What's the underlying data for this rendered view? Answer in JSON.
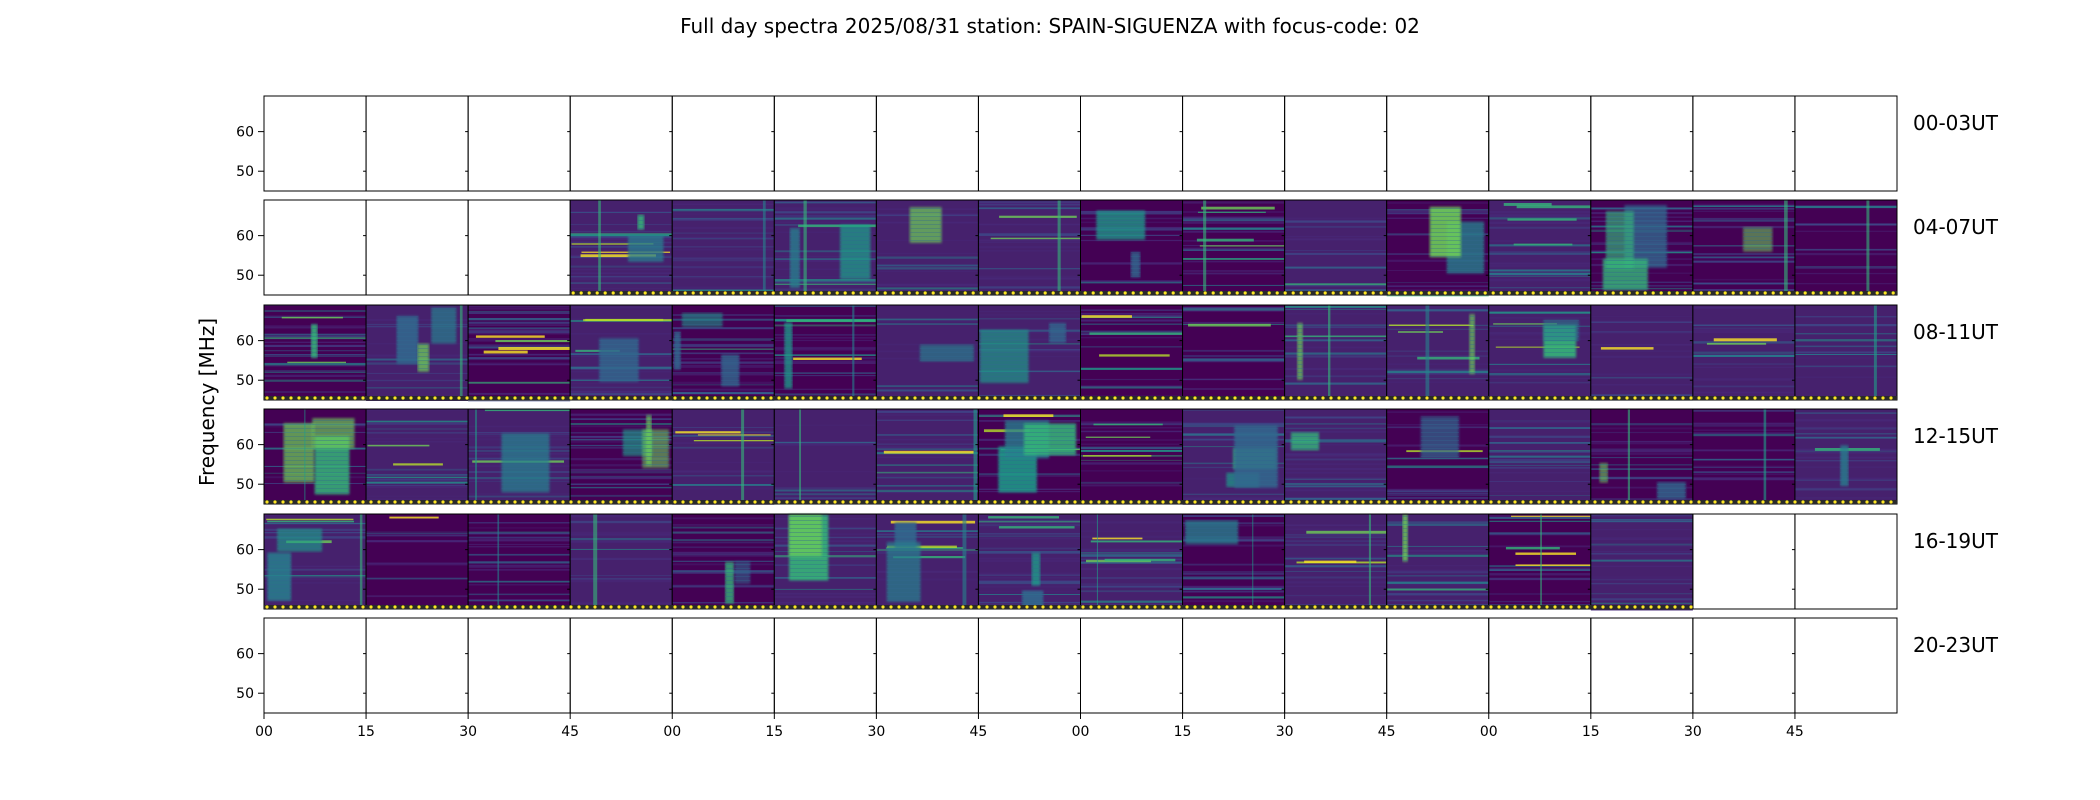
{
  "chart_data": {
    "type": "heatmap",
    "title": "Full day spectra 2025/08/31 station: SPAIN-SIGUENZA with focus-code: 02",
    "ylabel": "Frequency [MHz]",
    "xlabel": "",
    "y_ticks": [
      50,
      60
    ],
    "y_range": [
      45,
      69
    ],
    "x_ticks": [
      "00",
      "15",
      "30",
      "45",
      "00",
      "15",
      "30",
      "45",
      "00",
      "15",
      "30",
      "45",
      "00",
      "15",
      "30",
      "45"
    ],
    "colormap": "viridis",
    "grid": false,
    "panels_per_row": 16,
    "rows": [
      {
        "label": "00-03UT",
        "panels": "0000000000000000",
        "markers": false
      },
      {
        "label": "04-07UT",
        "panels": "0001111111111111",
        "markers": true
      },
      {
        "label": "08-11UT",
        "panels": "1111111111111111",
        "markers": true
      },
      {
        "label": "12-15UT",
        "panels": "1111111111111111",
        "markers": true
      },
      {
        "label": "16-19UT",
        "panels": "1111111111111100",
        "markers": true
      },
      {
        "label": "20-23UT",
        "panels": "0000000000000000",
        "markers": false
      }
    ]
  }
}
